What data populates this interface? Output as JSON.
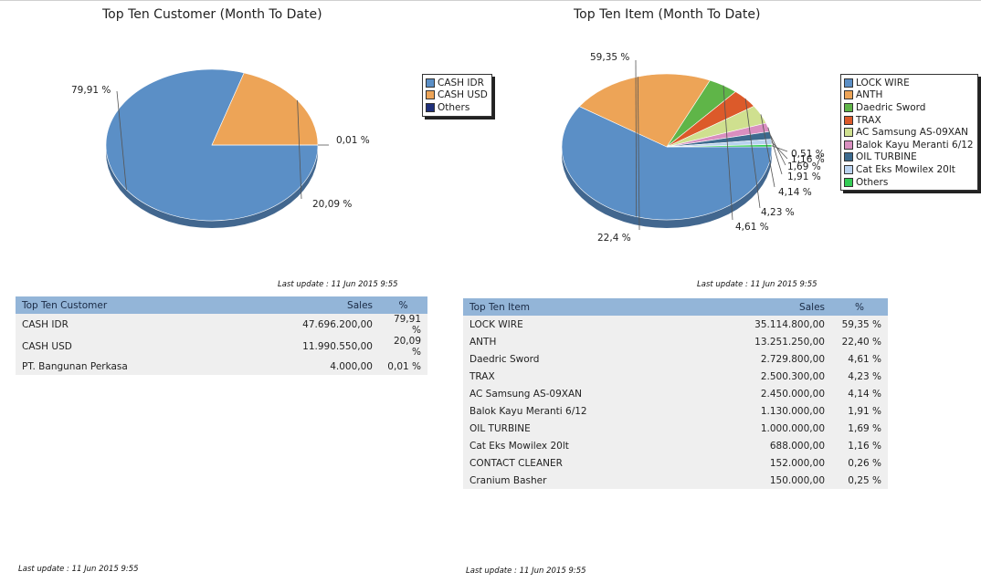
{
  "chart_data": [
    {
      "type": "pie",
      "title": "Top Ten Customer (Month To Date)",
      "categories": [
        "CASH IDR",
        "CASH USD",
        "Others"
      ],
      "values": [
        79.91,
        20.09,
        0.01
      ],
      "value_labels": [
        "79,91 %",
        "20,09 %",
        "0,01 %"
      ],
      "colors": [
        "#5b8fc6",
        "#eda457",
        "#1f2f7a"
      ],
      "legend_position": "right"
    },
    {
      "type": "pie",
      "title": "Top Ten Item (Month To Date)",
      "categories": [
        "LOCK WIRE",
        "ANTH",
        "Daedric Sword",
        "TRAX",
        "AC Samsung AS-09XAN",
        "Balok Kayu Meranti 6/12",
        "OIL TURBINE",
        "Cat Eks Mowilex 20lt",
        "Others"
      ],
      "values": [
        59.35,
        22.4,
        4.61,
        4.23,
        4.14,
        1.91,
        1.69,
        1.16,
        0.51
      ],
      "value_labels": [
        "59,35 %",
        "22,4 %",
        "4,61 %",
        "4,23 %",
        "4,14 %",
        "1,91 %",
        "1,69 %",
        "1,16 %",
        "0,51 %"
      ],
      "colors": [
        "#5b8fc6",
        "#eda457",
        "#5fb548",
        "#dc5a2a",
        "#cfe08f",
        "#d98fc0",
        "#3c6a8e",
        "#b9d2ef",
        "#33cc55"
      ],
      "legend_position": "right"
    }
  ],
  "last_update_chart": "Last update : 11 Jun 2015 9:55",
  "last_update_chart2": "Last update : 11 Jun 2015 9:55",
  "last_update_bottom1": "Last update : 11 Jun 2015 9:55",
  "last_update_bottom2": "Last update : 11 Jun 2015 9:55",
  "customer_table": {
    "headers": [
      "Top Ten Customer",
      "Sales",
      "%"
    ],
    "rows": [
      {
        "name": "CASH IDR",
        "sales": "47.696.200,00",
        "pct": "79,91 %"
      },
      {
        "name": "CASH USD",
        "sales": "11.990.550,00",
        "pct": "20,09 %"
      },
      {
        "name": "PT. Bangunan Perkasa",
        "sales": "4.000,00",
        "pct": "0,01 %"
      }
    ]
  },
  "item_table": {
    "headers": [
      "Top Ten Item",
      "Sales",
      "%"
    ],
    "rows": [
      {
        "name": "LOCK WIRE",
        "sales": "35.114.800,00",
        "pct": "59,35 %"
      },
      {
        "name": "ANTH",
        "sales": "13.251.250,00",
        "pct": "22,40 %"
      },
      {
        "name": "Daedric Sword",
        "sales": "2.729.800,00",
        "pct": "4,61 %"
      },
      {
        "name": "TRAX",
        "sales": "2.500.300,00",
        "pct": "4,23 %"
      },
      {
        "name": "AC Samsung AS-09XAN",
        "sales": "2.450.000,00",
        "pct": "4,14 %"
      },
      {
        "name": "Balok Kayu Meranti 6/12",
        "sales": "1.130.000,00",
        "pct": "1,91 %"
      },
      {
        "name": "OIL TURBINE",
        "sales": "1.000.000,00",
        "pct": "1,69 %"
      },
      {
        "name": "Cat Eks Mowilex 20lt",
        "sales": "688.000,00",
        "pct": "1,16 %"
      },
      {
        "name": "CONTACT CLEANER",
        "sales": "152.000,00",
        "pct": "0,26 %"
      },
      {
        "name": "Cranium Basher",
        "sales": "150.000,00",
        "pct": "0,25 %"
      }
    ]
  }
}
